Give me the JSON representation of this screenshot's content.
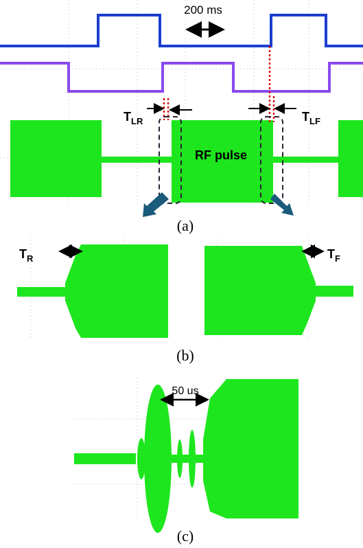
{
  "panel_a": {
    "time_scale": "200 ms",
    "t_lr": {
      "main": "T",
      "sub": "LR"
    },
    "t_lf": {
      "main": "T",
      "sub": "LF"
    },
    "pulse_label": "RF pulse",
    "caption": "(a)"
  },
  "panel_b": {
    "t_r": {
      "main": "T",
      "sub": "R"
    },
    "t_f": {
      "main": "T",
      "sub": "F"
    },
    "caption": "(b)"
  },
  "panel_c": {
    "time_scale": "50 us",
    "caption": "(c)"
  }
}
